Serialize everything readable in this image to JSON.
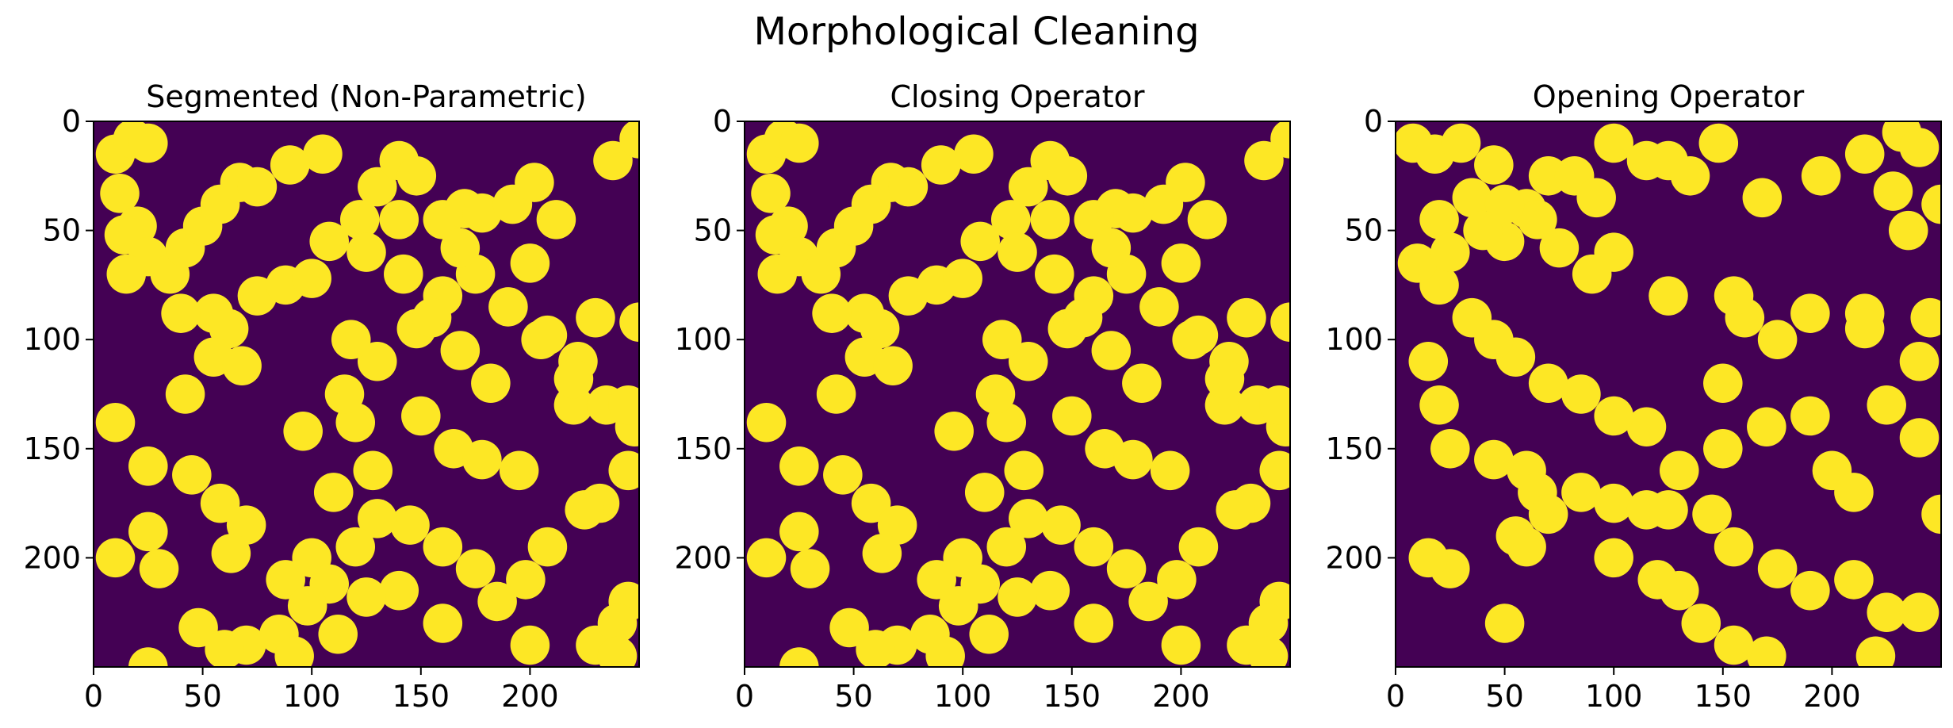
{
  "suptitle": "Morphological Cleaning",
  "colors": {
    "background": "#440154",
    "foreground": "#fde725",
    "axis": "#000000"
  },
  "chart_data": [
    {
      "type": "heatmap",
      "title": "Segmented (Non-Parametric)",
      "xlim": [
        0,
        250
      ],
      "ylim": [
        250,
        0
      ],
      "xticks": [
        0,
        50,
        100,
        150,
        200
      ],
      "yticks": [
        0,
        50,
        100,
        150,
        200
      ],
      "colormap": "viridis",
      "values_range": [
        0,
        1
      ],
      "blob_radius": 9,
      "blobs": [
        [
          10,
          15
        ],
        [
          18,
          8
        ],
        [
          25,
          10
        ],
        [
          12,
          33
        ],
        [
          20,
          48
        ],
        [
          14,
          52
        ],
        [
          25,
          62
        ],
        [
          35,
          70
        ],
        [
          42,
          58
        ],
        [
          50,
          48
        ],
        [
          58,
          38
        ],
        [
          67,
          28
        ],
        [
          55,
          88
        ],
        [
          62,
          95
        ],
        [
          75,
          80
        ],
        [
          88,
          75
        ],
        [
          100,
          72
        ],
        [
          108,
          55
        ],
        [
          122,
          45
        ],
        [
          130,
          30
        ],
        [
          140,
          18
        ],
        [
          148,
          25
        ],
        [
          160,
          45
        ],
        [
          170,
          40
        ],
        [
          178,
          42
        ],
        [
          192,
          38
        ],
        [
          212,
          45
        ],
        [
          200,
          65
        ],
        [
          205,
          100
        ],
        [
          220,
          130
        ],
        [
          232,
          175
        ],
        [
          245,
          220
        ],
        [
          230,
          240
        ],
        [
          240,
          230
        ],
        [
          15,
          70
        ],
        [
          40,
          88
        ],
        [
          55,
          108
        ],
        [
          68,
          112
        ],
        [
          42,
          125
        ],
        [
          10,
          138
        ],
        [
          25,
          158
        ],
        [
          45,
          162
        ],
        [
          58,
          175
        ],
        [
          70,
          185
        ],
        [
          63,
          198
        ],
        [
          88,
          210
        ],
        [
          100,
          200
        ],
        [
          110,
          170
        ],
        [
          128,
          160
        ],
        [
          120,
          138
        ],
        [
          115,
          125
        ],
        [
          130,
          110
        ],
        [
          148,
          95
        ],
        [
          160,
          80
        ],
        [
          175,
          70
        ],
        [
          190,
          85
        ],
        [
          208,
          98
        ],
        [
          222,
          110
        ],
        [
          220,
          118
        ],
        [
          235,
          130
        ],
        [
          248,
          140
        ],
        [
          245,
          160
        ],
        [
          225,
          178
        ],
        [
          208,
          195
        ],
        [
          198,
          210
        ],
        [
          185,
          220
        ],
        [
          175,
          205
        ],
        [
          160,
          195
        ],
        [
          145,
          185
        ],
        [
          130,
          182
        ],
        [
          120,
          195
        ],
        [
          108,
          212
        ],
        [
          98,
          222
        ],
        [
          85,
          235
        ],
        [
          70,
          240
        ],
        [
          48,
          232
        ],
        [
          60,
          242
        ],
        [
          200,
          240
        ],
        [
          240,
          245
        ],
        [
          25,
          250
        ],
        [
          105,
          15
        ],
        [
          90,
          20
        ],
        [
          75,
          30
        ],
        [
          140,
          45
        ],
        [
          125,
          60
        ],
        [
          118,
          100
        ],
        [
          96,
          142
        ],
        [
          150,
          135
        ],
        [
          165,
          150
        ],
        [
          178,
          155
        ],
        [
          195,
          160
        ],
        [
          182,
          120
        ],
        [
          168,
          105
        ],
        [
          155,
          90
        ],
        [
          142,
          70
        ],
        [
          168,
          58
        ],
        [
          202,
          28
        ],
        [
          238,
          18
        ],
        [
          250,
          8
        ],
        [
          250,
          92
        ],
        [
          230,
          90
        ],
        [
          245,
          130
        ],
        [
          160,
          230
        ],
        [
          140,
          215
        ],
        [
          125,
          218
        ],
        [
          112,
          235
        ],
        [
          92,
          245
        ],
        [
          25,
          188
        ],
        [
          10,
          200
        ],
        [
          30,
          205
        ]
      ]
    },
    {
      "type": "heatmap",
      "title": "Closing Operator",
      "xlim": [
        0,
        250
      ],
      "ylim": [
        250,
        0
      ],
      "xticks": [
        0,
        50,
        100,
        150,
        200
      ],
      "yticks": [
        0,
        50,
        100,
        150,
        200
      ],
      "colormap": "viridis",
      "values_range": [
        0,
        1
      ],
      "blob_radius": 9,
      "blobs": [
        [
          10,
          15
        ],
        [
          18,
          8
        ],
        [
          25,
          10
        ],
        [
          12,
          33
        ],
        [
          20,
          48
        ],
        [
          14,
          52
        ],
        [
          25,
          62
        ],
        [
          35,
          70
        ],
        [
          42,
          58
        ],
        [
          50,
          48
        ],
        [
          58,
          38
        ],
        [
          67,
          28
        ],
        [
          55,
          88
        ],
        [
          62,
          95
        ],
        [
          75,
          80
        ],
        [
          88,
          75
        ],
        [
          100,
          72
        ],
        [
          108,
          55
        ],
        [
          122,
          45
        ],
        [
          130,
          30
        ],
        [
          140,
          18
        ],
        [
          148,
          25
        ],
        [
          160,
          45
        ],
        [
          170,
          40
        ],
        [
          178,
          42
        ],
        [
          192,
          38
        ],
        [
          212,
          45
        ],
        [
          200,
          65
        ],
        [
          205,
          100
        ],
        [
          220,
          130
        ],
        [
          232,
          175
        ],
        [
          245,
          220
        ],
        [
          230,
          240
        ],
        [
          240,
          230
        ],
        [
          15,
          70
        ],
        [
          40,
          88
        ],
        [
          55,
          108
        ],
        [
          68,
          112
        ],
        [
          42,
          125
        ],
        [
          10,
          138
        ],
        [
          25,
          158
        ],
        [
          45,
          162
        ],
        [
          58,
          175
        ],
        [
          70,
          185
        ],
        [
          63,
          198
        ],
        [
          88,
          210
        ],
        [
          100,
          200
        ],
        [
          110,
          170
        ],
        [
          128,
          160
        ],
        [
          120,
          138
        ],
        [
          115,
          125
        ],
        [
          130,
          110
        ],
        [
          148,
          95
        ],
        [
          160,
          80
        ],
        [
          175,
          70
        ],
        [
          190,
          85
        ],
        [
          208,
          98
        ],
        [
          222,
          110
        ],
        [
          220,
          118
        ],
        [
          235,
          130
        ],
        [
          248,
          140
        ],
        [
          245,
          160
        ],
        [
          225,
          178
        ],
        [
          208,
          195
        ],
        [
          198,
          210
        ],
        [
          185,
          220
        ],
        [
          175,
          205
        ],
        [
          160,
          195
        ],
        [
          145,
          185
        ],
        [
          130,
          182
        ],
        [
          120,
          195
        ],
        [
          108,
          212
        ],
        [
          98,
          222
        ],
        [
          85,
          235
        ],
        [
          70,
          240
        ],
        [
          48,
          232
        ],
        [
          60,
          242
        ],
        [
          200,
          240
        ],
        [
          240,
          245
        ],
        [
          25,
          250
        ],
        [
          105,
          15
        ],
        [
          90,
          20
        ],
        [
          75,
          30
        ],
        [
          140,
          45
        ],
        [
          125,
          60
        ],
        [
          118,
          100
        ],
        [
          96,
          142
        ],
        [
          150,
          135
        ],
        [
          165,
          150
        ],
        [
          178,
          155
        ],
        [
          195,
          160
        ],
        [
          182,
          120
        ],
        [
          168,
          105
        ],
        [
          155,
          90
        ],
        [
          142,
          70
        ],
        [
          168,
          58
        ],
        [
          202,
          28
        ],
        [
          238,
          18
        ],
        [
          250,
          8
        ],
        [
          250,
          92
        ],
        [
          230,
          90
        ],
        [
          245,
          130
        ],
        [
          160,
          230
        ],
        [
          140,
          215
        ],
        [
          125,
          218
        ],
        [
          112,
          235
        ],
        [
          92,
          245
        ],
        [
          25,
          188
        ],
        [
          10,
          200
        ],
        [
          30,
          205
        ]
      ]
    },
    {
      "type": "heatmap",
      "title": "Opening Operator",
      "xlim": [
        0,
        250
      ],
      "ylim": [
        250,
        0
      ],
      "xticks": [
        0,
        50,
        100,
        150,
        200
      ],
      "yticks": [
        0,
        50,
        100,
        150,
        200
      ],
      "colormap": "viridis",
      "values_range": [
        0,
        1
      ],
      "blob_radius": 9,
      "blobs": [
        [
          8,
          10
        ],
        [
          18,
          15
        ],
        [
          30,
          10
        ],
        [
          45,
          20
        ],
        [
          35,
          35
        ],
        [
          20,
          45
        ],
        [
          50,
          55
        ],
        [
          60,
          40
        ],
        [
          70,
          25
        ],
        [
          82,
          25
        ],
        [
          92,
          35
        ],
        [
          100,
          10
        ],
        [
          115,
          18
        ],
        [
          125,
          18
        ],
        [
          135,
          25
        ],
        [
          148,
          10
        ],
        [
          168,
          35
        ],
        [
          195,
          25
        ],
        [
          215,
          15
        ],
        [
          228,
          32
        ],
        [
          235,
          50
        ],
        [
          232,
          5
        ],
        [
          240,
          12
        ],
        [
          215,
          88
        ],
        [
          190,
          88
        ],
        [
          215,
          95
        ],
        [
          240,
          110
        ],
        [
          225,
          130
        ],
        [
          240,
          145
        ],
        [
          170,
          140
        ],
        [
          150,
          150
        ],
        [
          130,
          160
        ],
        [
          115,
          140
        ],
        [
          100,
          135
        ],
        [
          85,
          125
        ],
        [
          70,
          120
        ],
        [
          55,
          108
        ],
        [
          45,
          100
        ],
        [
          35,
          90
        ],
        [
          20,
          75
        ],
        [
          10,
          65
        ],
        [
          15,
          110
        ],
        [
          20,
          130
        ],
        [
          25,
          150
        ],
        [
          45,
          155
        ],
        [
          60,
          160
        ],
        [
          65,
          170
        ],
        [
          70,
          180
        ],
        [
          55,
          190
        ],
        [
          60,
          195
        ],
        [
          85,
          170
        ],
        [
          100,
          175
        ],
        [
          115,
          178
        ],
        [
          125,
          178
        ],
        [
          145,
          180
        ],
        [
          155,
          195
        ],
        [
          175,
          205
        ],
        [
          190,
          215
        ],
        [
          210,
          210
        ],
        [
          225,
          225
        ],
        [
          240,
          225
        ],
        [
          220,
          245
        ],
        [
          170,
          245
        ],
        [
          155,
          240
        ],
        [
          140,
          230
        ],
        [
          130,
          215
        ],
        [
          120,
          210
        ],
        [
          100,
          200
        ],
        [
          175,
          100
        ],
        [
          160,
          90
        ],
        [
          155,
          80
        ],
        [
          125,
          80
        ],
        [
          100,
          60
        ],
        [
          90,
          70
        ],
        [
          75,
          58
        ],
        [
          65,
          45
        ],
        [
          50,
          38
        ],
        [
          40,
          50
        ],
        [
          25,
          60
        ],
        [
          50,
          230
        ],
        [
          25,
          205
        ],
        [
          15,
          200
        ],
        [
          200,
          160
        ],
        [
          210,
          170
        ],
        [
          190,
          135
        ],
        [
          250,
          180
        ],
        [
          245,
          90
        ],
        [
          250,
          38
        ],
        [
          150,
          120
        ]
      ]
    }
  ]
}
